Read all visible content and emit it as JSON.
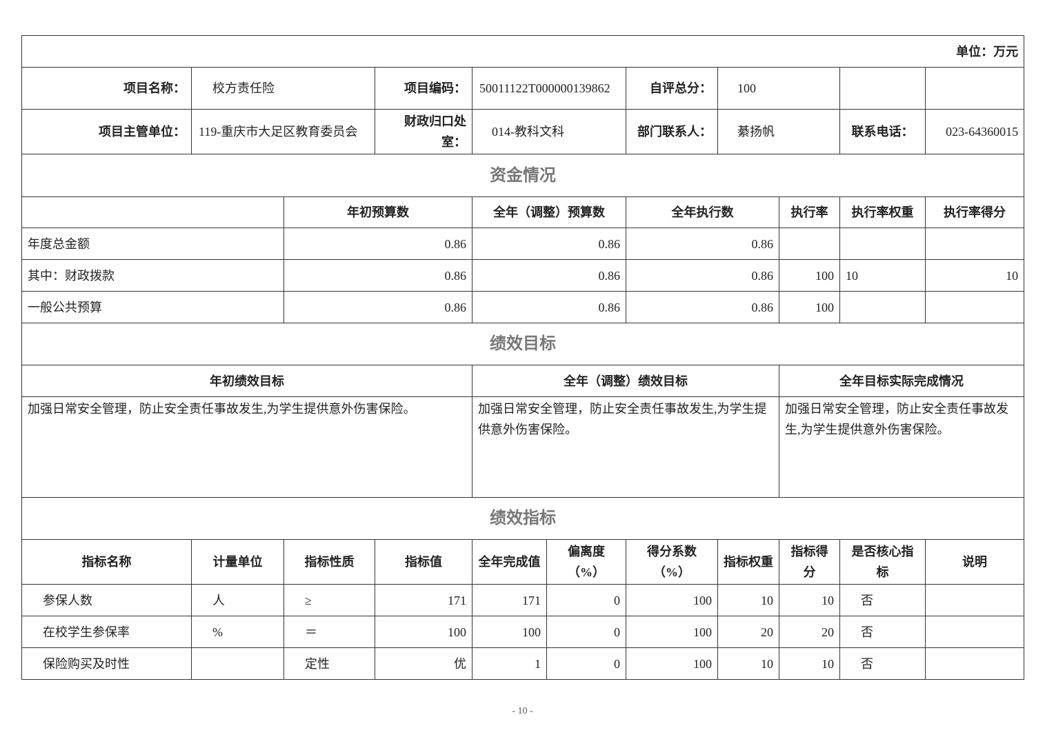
{
  "unit": "单位：万元",
  "info": {
    "name_label": "项目名称：",
    "name": "校方责任险",
    "code_label": "项目编码：",
    "code": "50011122T000000139862",
    "score_label": "自评总分：",
    "score": "100",
    "dept_label": "项目主管单位：",
    "dept": "119-重庆市大足区教育委员会",
    "finance_label": "财政归口处室：",
    "finance": "014-教科文科",
    "contact_label": "部门联系人：",
    "contact": "綦扬帆",
    "phone_label": "联系电话：",
    "phone": "023-64360015"
  },
  "funds": {
    "title": "资金情况",
    "headers": [
      "",
      "年初预算数",
      "全年（调整）预算数",
      "全年执行数",
      "执行率",
      "执行率权重",
      "执行率得分"
    ],
    "rows": [
      [
        "年度总金额",
        "0.86",
        "0.86",
        "0.86",
        "",
        "",
        ""
      ],
      [
        "其中：财政拨款",
        "0.86",
        "0.86",
        "0.86",
        "100",
        "10",
        "10"
      ],
      [
        "一般公共预算",
        "0.86",
        "0.86",
        "0.86",
        "100",
        "",
        ""
      ]
    ]
  },
  "goals": {
    "title": "绩效目标",
    "headers": [
      "年初绩效目标",
      "全年（调整）绩效目标",
      "全年目标实际完成情况"
    ],
    "values": [
      "加强日常安全管理，防止安全责任事故发生,为学生提供意外伤害保险。",
      "加强日常安全管理，防止安全责任事故发生,为学生提供意外伤害保险。",
      "加强日常安全管理，防止安全责任事故发生,为学生提供意外伤害保险。"
    ]
  },
  "indicators": {
    "title": "绩效指标",
    "headers": [
      "指标名称",
      "计量单位",
      "指标性质",
      "指标值",
      "全年完成值",
      "偏离度（%）",
      "得分系数（%）",
      "指标权重",
      "指标得分",
      "是否核心指标",
      "说明"
    ],
    "rows": [
      [
        "参保人数",
        "人",
        "≥",
        "171",
        "171",
        "0",
        "100",
        "10",
        "10",
        "否",
        ""
      ],
      [
        "在校学生参保率",
        "%",
        "＝",
        "100",
        "100",
        "0",
        "100",
        "20",
        "20",
        "否",
        ""
      ],
      [
        "保险购买及时性",
        "",
        "定性",
        "优",
        "1",
        "0",
        "100",
        "10",
        "10",
        "否",
        ""
      ]
    ]
  },
  "page_number": "- 10 -"
}
